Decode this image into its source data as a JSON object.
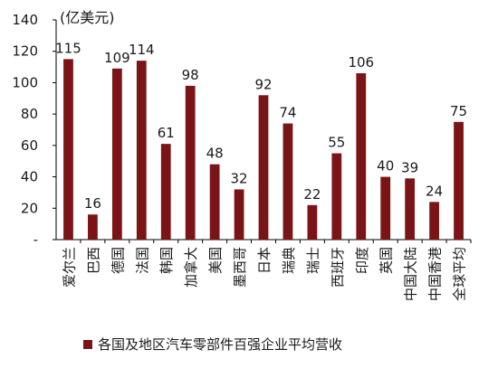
{
  "chart_data": {
    "type": "bar",
    "unit_label": "(亿美元)",
    "categories": [
      "爱尔兰",
      "巴西",
      "德国",
      "法国",
      "韩国",
      "加拿大",
      "美国",
      "墨西哥",
      "日本",
      "瑞典",
      "瑞士",
      "西班牙",
      "印度",
      "英国",
      "中国大陆",
      "中国香港",
      "全球平均"
    ],
    "series": [
      {
        "name": "各国及地区汽车零部件百强企业平均营收",
        "values": [
          115,
          16,
          109,
          114,
          61,
          98,
          48,
          32,
          92,
          74,
          22,
          55,
          106,
          40,
          39,
          24,
          75
        ],
        "color": "#7b1416"
      }
    ],
    "ylim": [
      0,
      140
    ],
    "yticks": [
      "-",
      "20",
      "40",
      "60",
      "80",
      "100",
      "120",
      "140"
    ],
    "grid": false,
    "legend_position": "bottom"
  }
}
